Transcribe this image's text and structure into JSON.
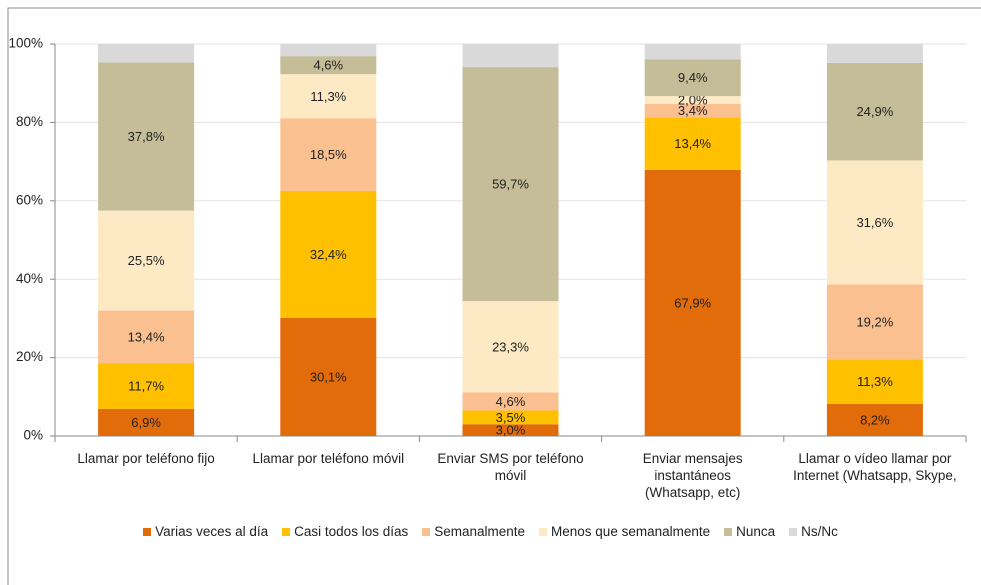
{
  "chart_data": {
    "type": "stacked-bar",
    "categories": [
      "Llamar por teléfono fijo",
      "Llamar por teléfono móvil",
      "Enviar SMS por teléfono móvil",
      "Enviar mensajes instantáneos\n(Whatsapp, etc)",
      "Llamar o vídeo llamar por\nInternet (Whatsapp, Skype,"
    ],
    "series": [
      {
        "name": "Varias veces al día",
        "color": "#e36c0a",
        "values": [
          6.9,
          30.1,
          3.0,
          67.9,
          8.2
        ],
        "value_labels": [
          "6,9%",
          "30,1%",
          "3,0%",
          "67,9%",
          "8,2%"
        ]
      },
      {
        "name": "Casi todos los días",
        "color": "#ffc000",
        "values": [
          11.7,
          32.4,
          3.5,
          13.4,
          11.3
        ],
        "value_labels": [
          "11,7%",
          "32,4%",
          "3,5%",
          "13,4%",
          "11,3%"
        ]
      },
      {
        "name": "Semanalmente",
        "color": "#fac090",
        "values": [
          13.4,
          18.5,
          4.6,
          3.4,
          19.2
        ],
        "value_labels": [
          "13,4%",
          "18,5%",
          "4,6%",
          "3,4%",
          "19,2%"
        ]
      },
      {
        "name": "Menos que semanalmente",
        "color": "#fdeac4",
        "values": [
          25.5,
          11.3,
          23.3,
          2.0,
          31.6
        ],
        "value_labels": [
          "25,5%",
          "11,3%",
          "23,3%",
          "2,0%",
          "31,6%"
        ]
      },
      {
        "name": "Nunca",
        "color": "#c4bd97",
        "values": [
          37.8,
          4.6,
          59.7,
          9.4,
          24.9
        ],
        "value_labels": [
          "37,8%",
          "4,6%",
          "59,7%",
          "9,4%",
          "24,9%"
        ]
      },
      {
        "name": "Ns/Nc",
        "color": "#d9d9d9",
        "values": [
          4.7,
          3.1,
          5.9,
          3.9,
          4.8
        ]
      }
    ],
    "ylim": [
      0,
      100
    ],
    "yticks": [
      {
        "value": 0,
        "label": "0%"
      },
      {
        "value": 20,
        "label": "20%"
      },
      {
        "value": 40,
        "label": "40%"
      },
      {
        "value": 60,
        "label": "60%"
      },
      {
        "value": 80,
        "label": "80%"
      },
      {
        "value": 100,
        "label": "100%"
      }
    ],
    "grid": true,
    "legend": "bottom"
  }
}
